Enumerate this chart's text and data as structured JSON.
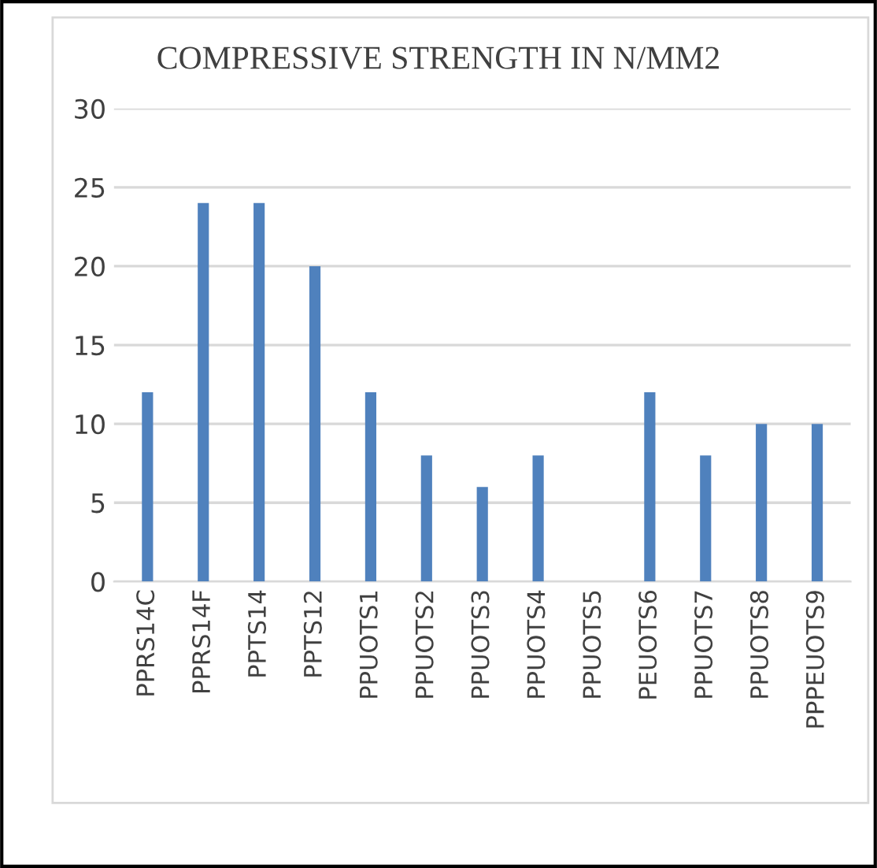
{
  "chart_data": {
    "type": "bar",
    "title": "COMPRESSIVE STRENGTH IN N/MM2",
    "categories": [
      "PPRS14C",
      "PPRS14F",
      "PPTS14",
      "PPTS12",
      "PPUOTS1",
      "PPUOTS2",
      "PPUOTS3",
      "PPUOTS4",
      "PPUOTS5",
      "PEUOTS6",
      "PPUOTS7",
      "PPUOTS8",
      "PPPEUOTS9"
    ],
    "values": [
      12,
      24,
      24,
      20,
      12,
      8,
      6,
      8,
      null,
      12,
      8,
      10,
      10
    ],
    "color": "#4f81bd",
    "ylim": [
      0,
      30
    ],
    "yticks": [
      0,
      5,
      10,
      15,
      20,
      25,
      30
    ],
    "grid": "y",
    "legend": false
  }
}
